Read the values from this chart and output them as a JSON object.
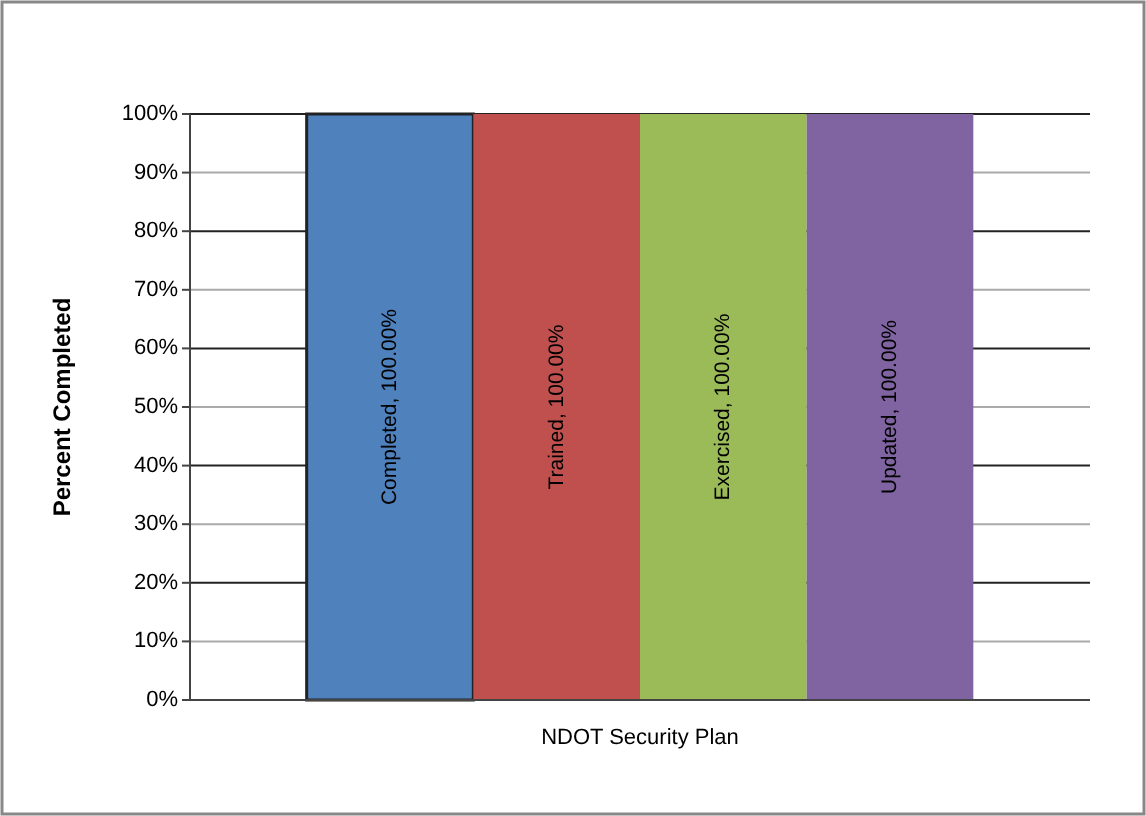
{
  "chart_data": {
    "type": "bar",
    "xlabel": "NDOT Security Plan",
    "ylabel": "Percent Completed",
    "categories": [
      null
    ],
    "series": [
      {
        "name": "Completed",
        "color": "#4f81bd",
        "values": [
          100
        ],
        "value_labels": [
          ", 100.00%"
        ]
      },
      {
        "name": "Trained",
        "color": "#c0504d",
        "values": [
          100
        ],
        "value_labels": [
          ", 100.00%"
        ]
      },
      {
        "name": "Exercised",
        "color": "#9bbb59",
        "values": [
          100
        ],
        "value_labels": [
          ", 100.00%"
        ]
      },
      {
        "name": "Updated",
        "color": "#8064a2",
        "values": [
          100
        ],
        "value_labels": [
          ", 100.00%"
        ]
      }
    ],
    "ylim": [
      0,
      100
    ],
    "yticks": [
      {
        "value": 0,
        "label": "0%"
      },
      {
        "value": 10,
        "label": "10%"
      },
      {
        "value": 20,
        "label": "20%"
      },
      {
        "value": 30,
        "label": "30%"
      },
      {
        "value": 40,
        "label": "40%"
      },
      {
        "value": 50,
        "label": "50%"
      },
      {
        "value": 60,
        "label": "60%"
      },
      {
        "value": 70,
        "label": "70%"
      },
      {
        "value": 80,
        "label": "80%"
      },
      {
        "value": 90,
        "label": "90%"
      },
      {
        "value": 100,
        "label": "100%"
      }
    ],
    "grid": "y"
  }
}
